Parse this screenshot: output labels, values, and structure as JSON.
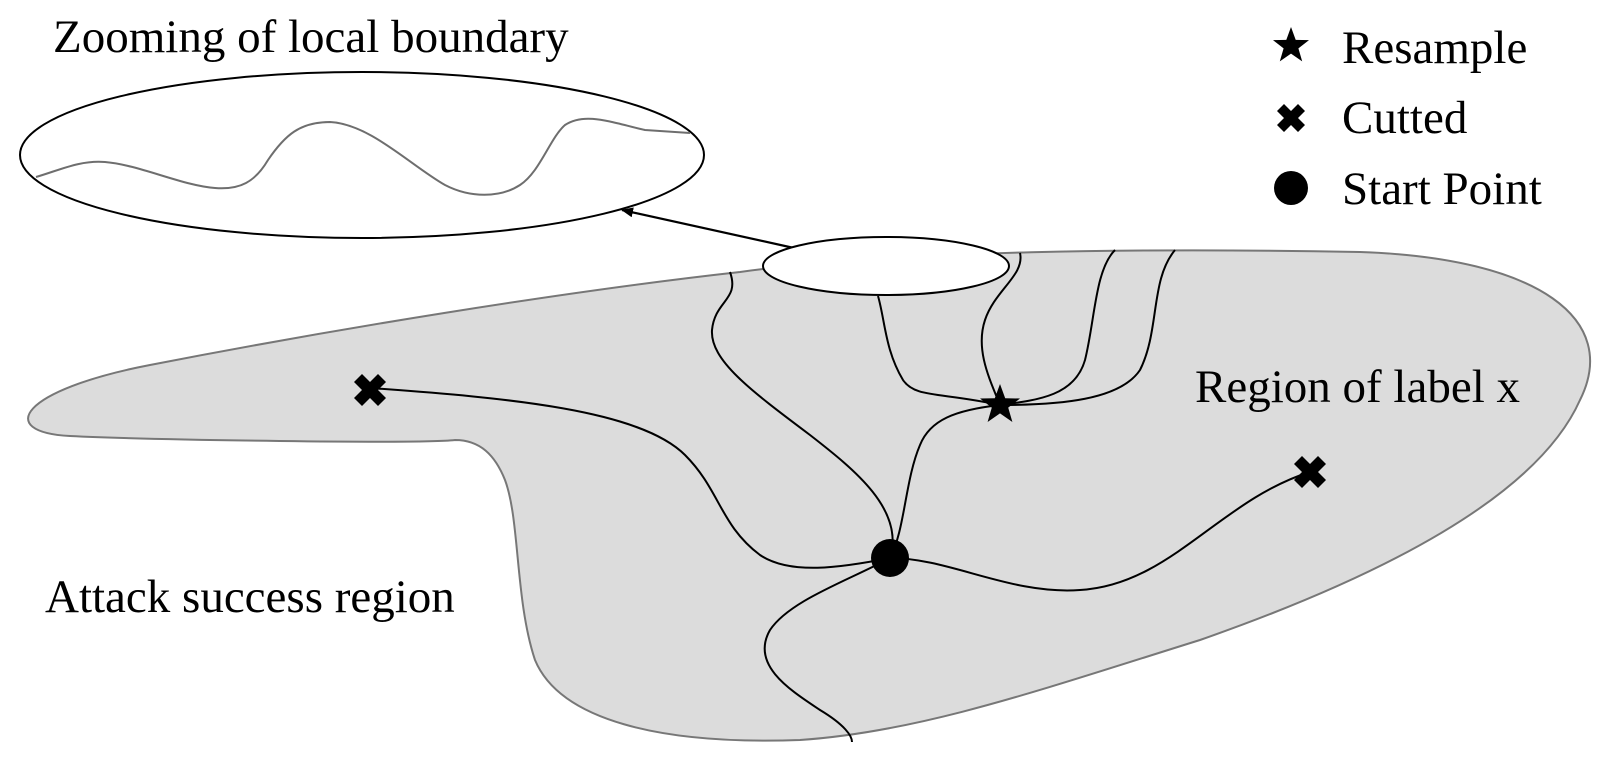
{
  "diagram": {
    "zoom_title": "Zooming of local boundary",
    "region_label": "Region of label x",
    "attack_label": "Attack success region"
  },
  "legend": {
    "items": [
      {
        "label": "Resample",
        "icon": "star-icon"
      },
      {
        "label": "Cutted",
        "icon": "cross-icon"
      },
      {
        "label": "Start Point",
        "icon": "dot-icon"
      }
    ]
  },
  "colors": {
    "region_fill": "#dcdcdc",
    "region_stroke": "#777777",
    "path_stroke": "#000000",
    "zoom_curve": "#6e6e6e"
  }
}
